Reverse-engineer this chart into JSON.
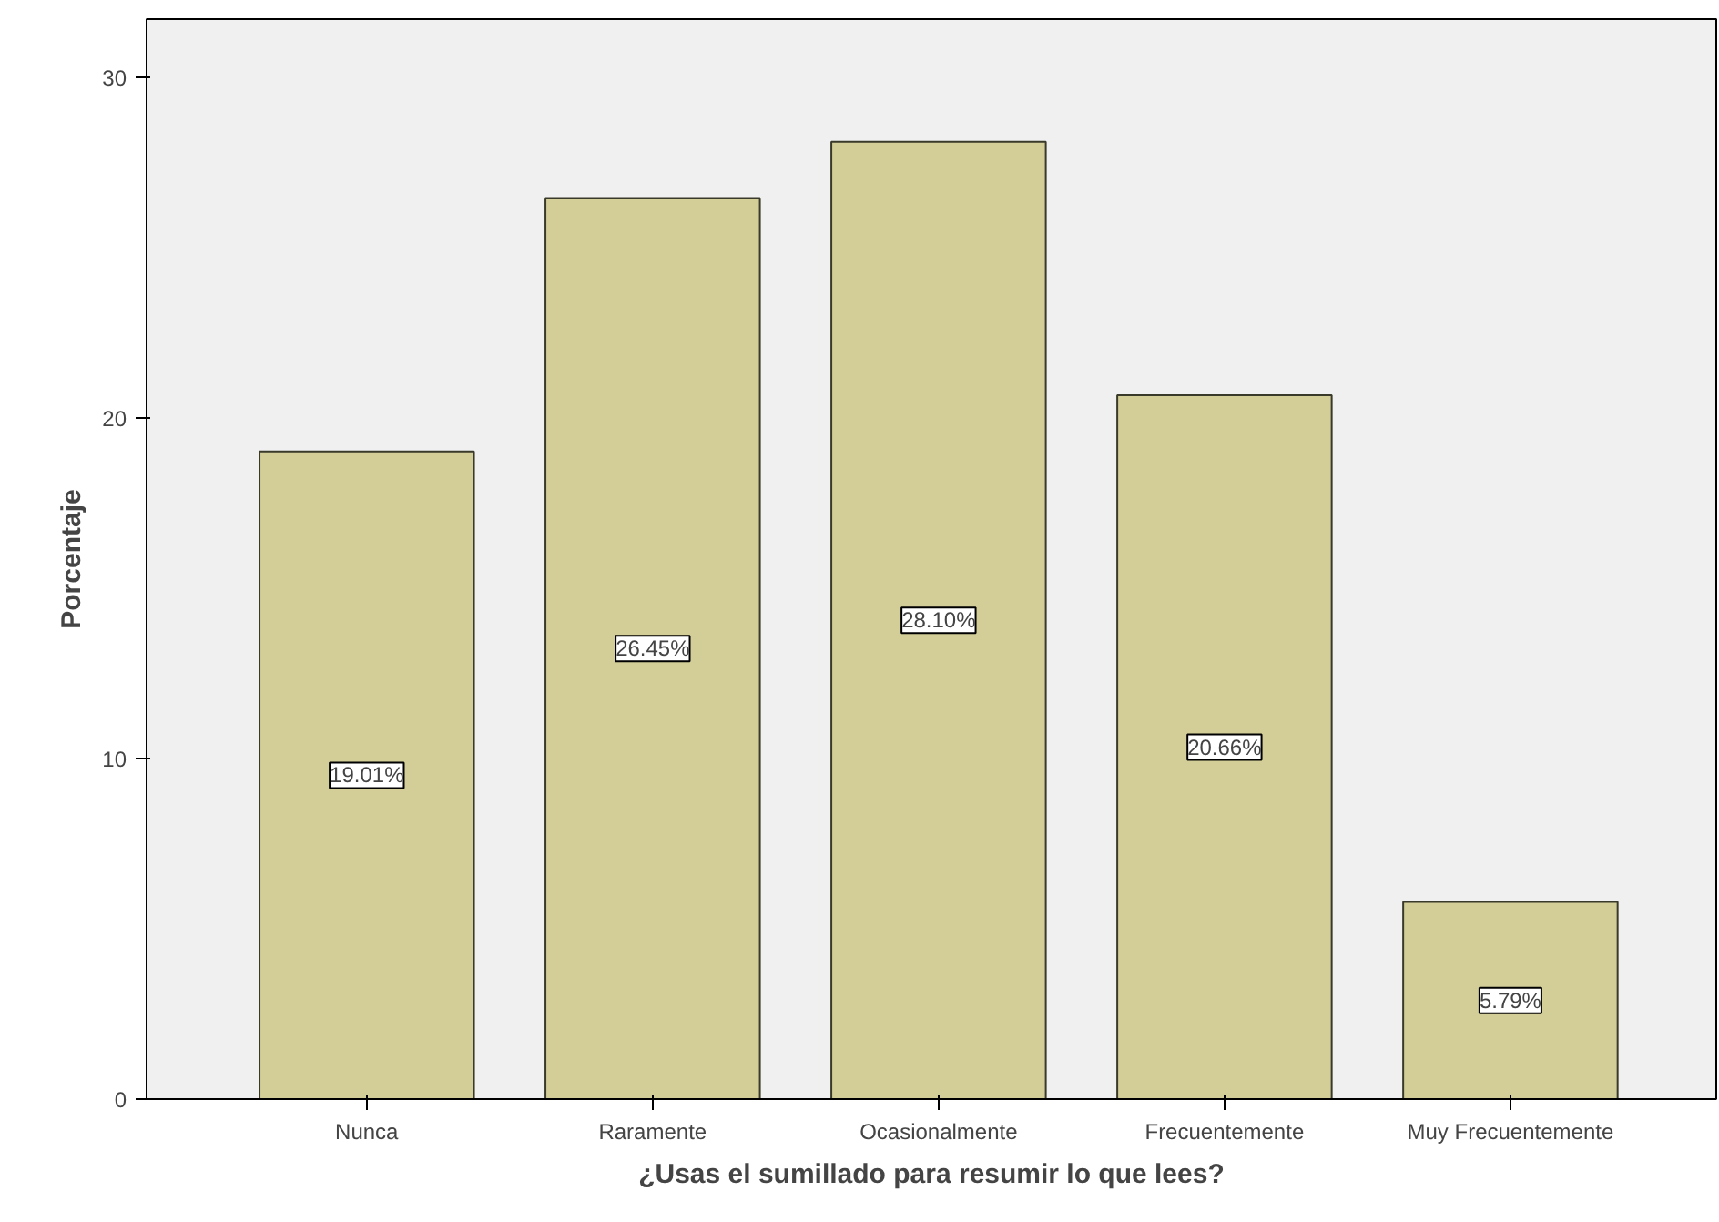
{
  "chart_data": {
    "type": "bar",
    "xlabel": "¿Usas el sumillado para resumir lo que lees?",
    "ylabel": "Porcentaje",
    "categories": [
      "Nunca",
      "Raramente",
      "Ocasionalmente",
      "Frecuentemente",
      "Muy Frecuentemente"
    ],
    "values": [
      19.01,
      26.45,
      28.1,
      20.66,
      5.79
    ],
    "value_labels": [
      "19.01%",
      "26.45%",
      "28.10%",
      "20.66%",
      "5.79%"
    ],
    "color": "#d3ce97",
    "ylim": [
      0,
      31.7
    ],
    "yticks": [
      0,
      10,
      20,
      30
    ],
    "grid": false
  }
}
